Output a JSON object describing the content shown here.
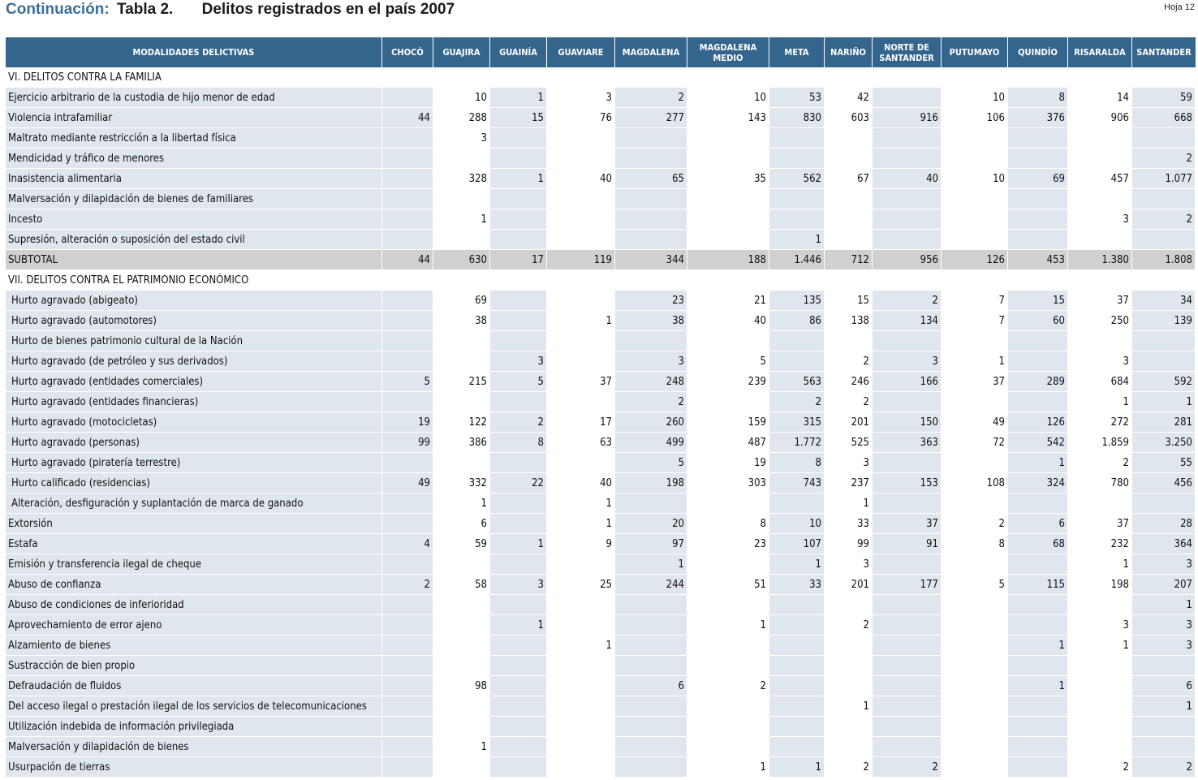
{
  "header": {
    "continuation": "Continuación:",
    "table_no": "Tabla 2.",
    "title": "Delitos registrados en el país 2007",
    "sheet": "Hoja 12"
  },
  "columns": [
    "MODALIDADES DELICTIVAS",
    "CHOCÓ",
    "GUAJIRA",
    "GUAINÍA",
    "GUAVIARE",
    "MAGDALENA",
    "MAGDALENA MEDIO",
    "META",
    "NARIÑO",
    "NORTE DE SANTANDER",
    "PUTUMAYO",
    "QUINDÍO",
    "RISARALDA",
    "SANTANDER"
  ],
  "rows": [
    {
      "type": "section",
      "label": "VI. DELITOS CONTRA LA FAMILIA"
    },
    {
      "type": "data",
      "label": "Ejercicio arbitrario de la custodia de hijo menor de edad",
      "values": [
        "",
        "10",
        "1",
        "3",
        "2",
        "10",
        "53",
        "42",
        "",
        "10",
        "8",
        "14",
        "59"
      ]
    },
    {
      "type": "data",
      "label": "Violencia intrafamiliar",
      "values": [
        "44",
        "288",
        "15",
        "76",
        "277",
        "143",
        "830",
        "603",
        "916",
        "106",
        "376",
        "906",
        "668"
      ]
    },
    {
      "type": "data",
      "label": "Maltrato mediante restricción a la libertad física",
      "values": [
        "",
        "3",
        "",
        "",
        "",
        "",
        "",
        "",
        "",
        "",
        "",
        "",
        ""
      ]
    },
    {
      "type": "data",
      "label": "Mendicidad y tráfico de menores",
      "values": [
        "",
        "",
        "",
        "",
        "",
        "",
        "",
        "",
        "",
        "",
        "",
        "",
        "2"
      ]
    },
    {
      "type": "data",
      "label": "Inasistencia alimentaria",
      "values": [
        "",
        "328",
        "1",
        "40",
        "65",
        "35",
        "562",
        "67",
        "40",
        "10",
        "69",
        "457",
        "1.077"
      ]
    },
    {
      "type": "data",
      "label": "Malversación y dilapidación de bienes de familiares",
      "values": [
        "",
        "",
        "",
        "",
        "",
        "",
        "",
        "",
        "",
        "",
        "",
        "",
        ""
      ]
    },
    {
      "type": "data",
      "label": "Incesto",
      "values": [
        "",
        "1",
        "",
        "",
        "",
        "",
        "",
        "",
        "",
        "",
        "",
        "3",
        "2"
      ]
    },
    {
      "type": "data",
      "label": "Supresión, alteración o suposición del estado civil",
      "values": [
        "",
        "",
        "",
        "",
        "",
        "",
        "1",
        "",
        "",
        "",
        "",
        "",
        ""
      ]
    },
    {
      "type": "subtotal",
      "label": "SUBTOTAL",
      "values": [
        "44",
        "630",
        "17",
        "119",
        "344",
        "188",
        "1.446",
        "712",
        "956",
        "126",
        "453",
        "1.380",
        "1.808"
      ]
    },
    {
      "type": "section",
      "label": "VII. DELITOS CONTRA EL PATRIMONIO ECONÓMICO"
    },
    {
      "type": "data",
      "indent": true,
      "label": "Hurto agravado (abigeato)",
      "values": [
        "",
        "69",
        "",
        "",
        "23",
        "21",
        "135",
        "15",
        "2",
        "7",
        "15",
        "37",
        "34"
      ]
    },
    {
      "type": "data",
      "indent": true,
      "label": "Hurto agravado (automotores)",
      "values": [
        "",
        "38",
        "",
        "1",
        "38",
        "40",
        "86",
        "138",
        "134",
        "7",
        "60",
        "250",
        "139"
      ]
    },
    {
      "type": "data",
      "indent": true,
      "label": "Hurto de bienes patrimonio cultural de la Nación",
      "values": [
        "",
        "",
        "",
        "",
        "",
        "",
        "",
        "",
        "",
        "",
        "",
        "",
        ""
      ]
    },
    {
      "type": "data",
      "indent": true,
      "label": "Hurto agravado (de petróleo y sus derivados)",
      "values": [
        "",
        "",
        "3",
        "",
        "3",
        "5",
        "",
        "2",
        "3",
        "1",
        "",
        "3",
        ""
      ]
    },
    {
      "type": "data",
      "indent": true,
      "label": "Hurto agravado (entidades comerciales)",
      "values": [
        "5",
        "215",
        "5",
        "37",
        "248",
        "239",
        "563",
        "246",
        "166",
        "37",
        "289",
        "684",
        "592"
      ]
    },
    {
      "type": "data",
      "indent": true,
      "label": "Hurto agravado (entidades financieras)",
      "values": [
        "",
        "",
        "",
        "",
        "2",
        "",
        "2",
        "2",
        "",
        "",
        "",
        "1",
        "1"
      ]
    },
    {
      "type": "data",
      "indent": true,
      "label": "Hurto agravado (motocicletas)",
      "values": [
        "19",
        "122",
        "2",
        "17",
        "260",
        "159",
        "315",
        "201",
        "150",
        "49",
        "126",
        "272",
        "281"
      ]
    },
    {
      "type": "data",
      "indent": true,
      "label": "Hurto agravado (personas)",
      "values": [
        "99",
        "386",
        "8",
        "63",
        "499",
        "487",
        "1.772",
        "525",
        "363",
        "72",
        "542",
        "1.859",
        "3.250"
      ]
    },
    {
      "type": "data",
      "indent": true,
      "label": "Hurto agravado (piratería terrestre)",
      "values": [
        "",
        "",
        "",
        "",
        "5",
        "19",
        "8",
        "3",
        "",
        "",
        "1",
        "2",
        "55"
      ]
    },
    {
      "type": "data",
      "indent": true,
      "label": "Hurto calificado (residencias)",
      "values": [
        "49",
        "332",
        "22",
        "40",
        "198",
        "303",
        "743",
        "237",
        "153",
        "108",
        "324",
        "780",
        "456"
      ]
    },
    {
      "type": "data",
      "indent": true,
      "label": "Alteración, desfiguración y suplantación de marca de ganado",
      "values": [
        "",
        "1",
        "",
        "1",
        "",
        "",
        "",
        "1",
        "",
        "",
        "",
        "",
        ""
      ]
    },
    {
      "type": "data",
      "label": "Extorsión",
      "values": [
        "",
        "6",
        "",
        "1",
        "20",
        "8",
        "10",
        "33",
        "37",
        "2",
        "6",
        "37",
        "28"
      ]
    },
    {
      "type": "data",
      "label": "Estafa",
      "values": [
        "4",
        "59",
        "1",
        "9",
        "97",
        "23",
        "107",
        "99",
        "91",
        "8",
        "68",
        "232",
        "364"
      ]
    },
    {
      "type": "data",
      "label": "Emisión y transferencia ilegal de cheque",
      "values": [
        "",
        "",
        "",
        "",
        "1",
        "",
        "1",
        "3",
        "",
        "",
        "",
        "1",
        "3"
      ]
    },
    {
      "type": "data",
      "label": "Abuso de confianza",
      "values": [
        "2",
        "58",
        "3",
        "25",
        "244",
        "51",
        "33",
        "201",
        "177",
        "5",
        "115",
        "198",
        "207"
      ]
    },
    {
      "type": "data",
      "label": "Abuso de condiciones de inferioridad",
      "values": [
        "",
        "",
        "",
        "",
        "",
        "",
        "",
        "",
        "",
        "",
        "",
        "",
        "1"
      ]
    },
    {
      "type": "data",
      "label": "Aprovechamiento de error ajeno",
      "values": [
        "",
        "",
        "1",
        "",
        "",
        "1",
        "",
        "2",
        "",
        "",
        "",
        "3",
        "3"
      ]
    },
    {
      "type": "data",
      "label": "Alzamiento de bienes",
      "values": [
        "",
        "",
        "",
        "1",
        "",
        "",
        "",
        "",
        "",
        "",
        "1",
        "1",
        "3"
      ]
    },
    {
      "type": "data",
      "label": "Sustracción de bien propio",
      "values": [
        "",
        "",
        "",
        "",
        "",
        "",
        "",
        "",
        "",
        "",
        "",
        "",
        ""
      ]
    },
    {
      "type": "data",
      "label": "Defraudación de fluidos",
      "values": [
        "",
        "98",
        "",
        "",
        "6",
        "2",
        "",
        "",
        "",
        "",
        "1",
        "",
        "6"
      ]
    },
    {
      "type": "data",
      "label": "Del acceso ilegal o prestación ilegal de los servicios de telecomunicaciones",
      "values": [
        "",
        "",
        "",
        "",
        "",
        "",
        "",
        "1",
        "",
        "",
        "",
        "",
        "1"
      ]
    },
    {
      "type": "data",
      "label": "Utilización indebida de información privilegiada",
      "values": [
        "",
        "",
        "",
        "",
        "",
        "",
        "",
        "",
        "",
        "",
        "",
        "",
        ""
      ]
    },
    {
      "type": "data",
      "label": "Malversación y dilapidación de bienes",
      "values": [
        "",
        "1",
        "",
        "",
        "",
        "",
        "",
        "",
        "",
        "",
        "",
        "",
        ""
      ]
    },
    {
      "type": "data",
      "label": "Usurpación de tierras",
      "values": [
        "",
        "",
        "",
        "",
        "",
        "1",
        "1",
        "2",
        "2",
        "",
        "",
        "2",
        "2"
      ]
    }
  ]
}
